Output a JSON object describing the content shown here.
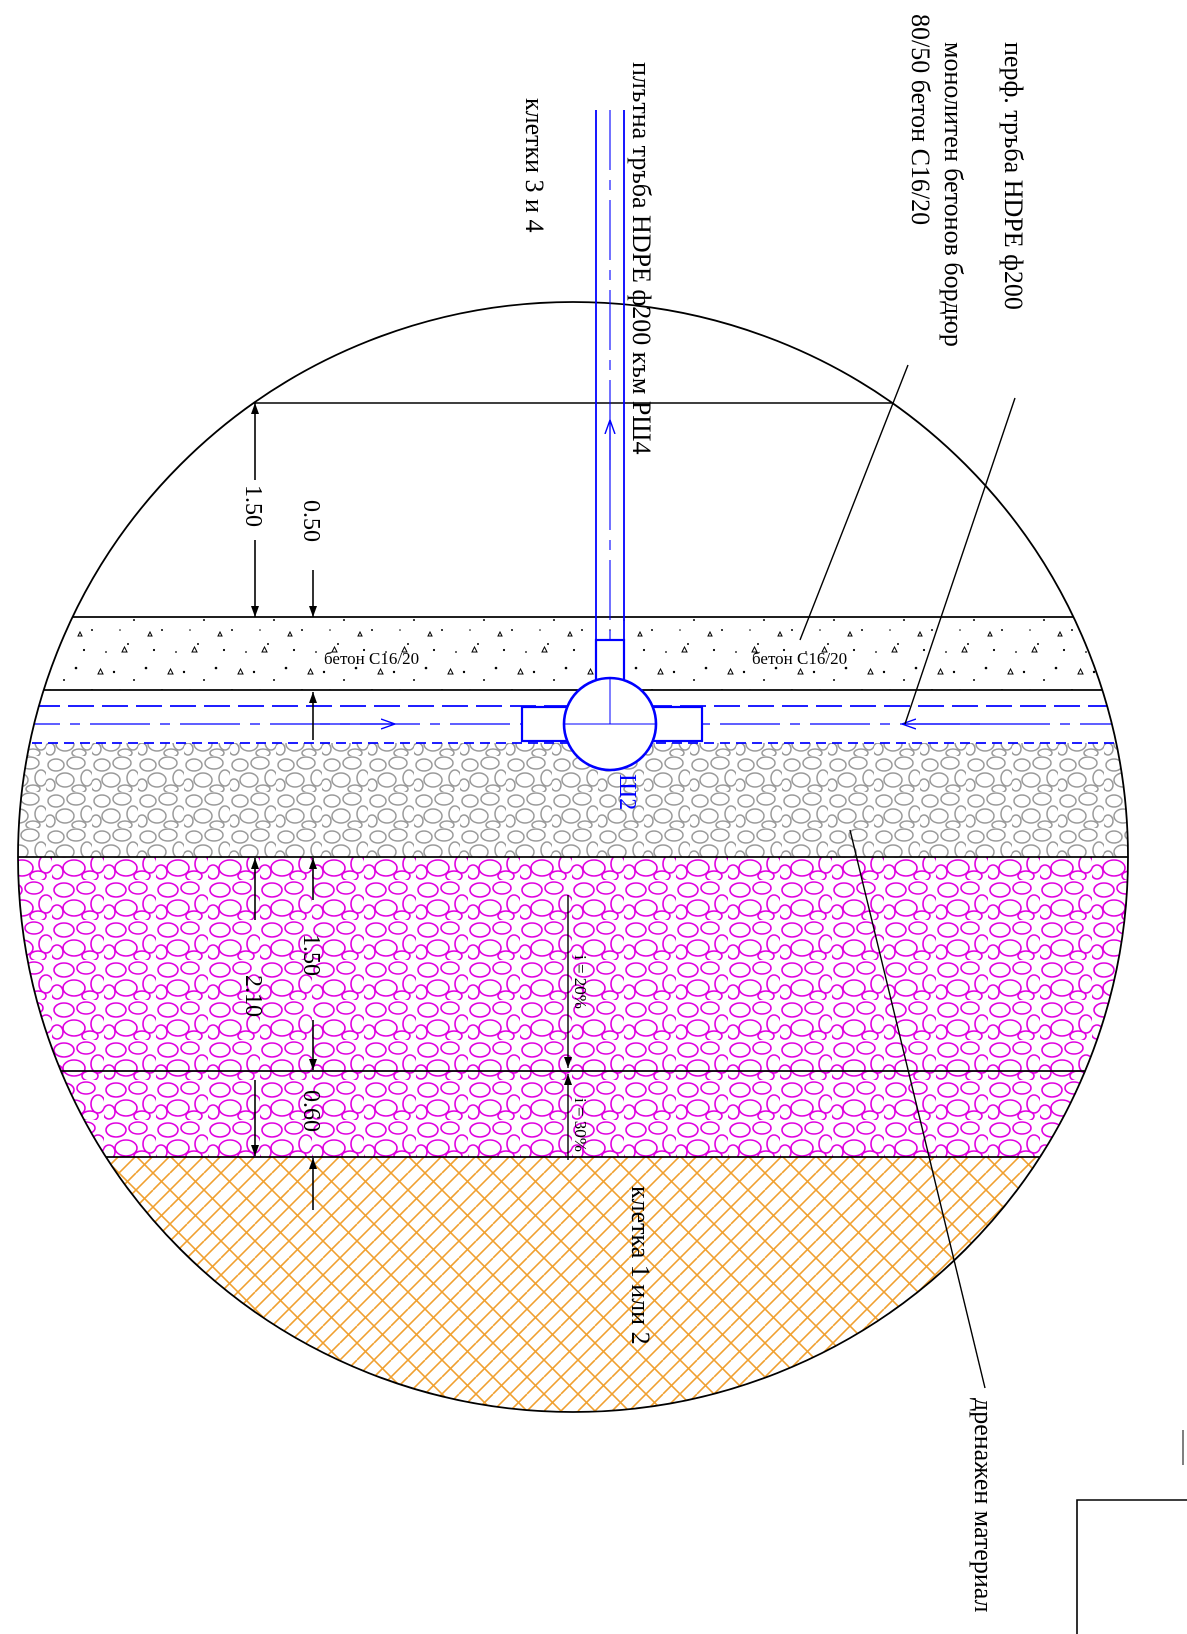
{
  "labels": {
    "perforated_pipe": "перф. тръба HDPE ф200",
    "border_line1": "монолитен бетонов бордюр",
    "border_line2": "80/50  бетон С16/20",
    "solid_pipe": "плътна тръба HDPE ф200 към РШ4",
    "cells_3_4": "клетки  3 и 4",
    "cell_1_2": "клетка 1 или 2",
    "drain_material": "дренажен материал",
    "concrete_left": "бетон С16/20",
    "concrete_right": "бетон С16/20",
    "manhole": "Ш2"
  },
  "dimensions": {
    "d_150_top": "1.50",
    "d_050": "0.50",
    "d_150_mid": "1.50",
    "d_210": "2.10",
    "d_060": "0.60"
  },
  "slopes": {
    "slope_20": "i = 20%",
    "slope_30": "i = 30%"
  },
  "colors": {
    "pipe_blue": "#0000ff",
    "drain_magenta": "#e000e0",
    "gravel_gray": "#9a9a9a",
    "soil_orange": "#f0a030",
    "line_black": "#000000"
  }
}
